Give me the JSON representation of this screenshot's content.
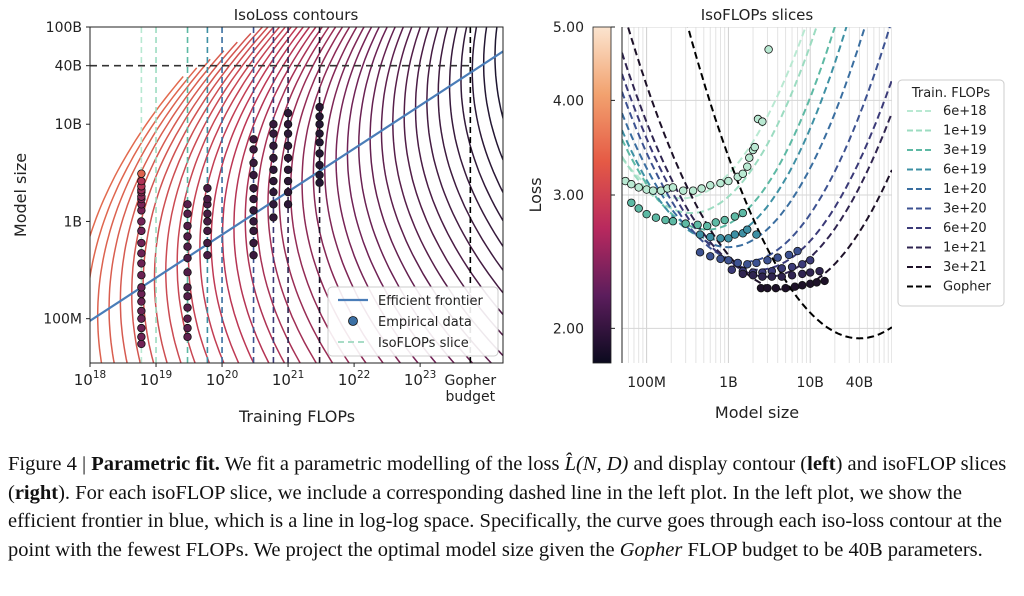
{
  "chart_data": [
    {
      "type": "contour",
      "title": "IsoLoss contours",
      "xlabel": "Training FLOPs",
      "ylabel": "Model size",
      "x_scale": "log",
      "y_scale": "log",
      "xlim": [
        1e+18,
        1.8e+24
      ],
      "ylim": [
        35000000.0,
        100000000000.0
      ],
      "x_ticks": [
        {
          "value": 1e+18,
          "base": "10",
          "exp": "18"
        },
        {
          "value": 1e+19,
          "base": "10",
          "exp": "19"
        },
        {
          "value": 1e+20,
          "base": "10",
          "exp": "20"
        },
        {
          "value": 1e+21,
          "base": "10",
          "exp": "21"
        },
        {
          "value": 1e+22,
          "base": "10",
          "exp": "22"
        },
        {
          "value": 1e+23,
          "base": "10",
          "exp": "23"
        }
      ],
      "gopher_tick": {
        "value": 5.76e+23,
        "line1": "Gopher",
        "line2": "budget"
      },
      "y_ticks": [
        {
          "value": 100000000.0,
          "label": "100M"
        },
        {
          "value": 1000000000.0,
          "label": "1B"
        },
        {
          "value": 10000000000.0,
          "label": "10B"
        },
        {
          "value": 40000000000.0,
          "label": "40B"
        },
        {
          "value": 100000000000.0,
          "label": "100B"
        }
      ],
      "efficient_frontier": {
        "points": [
          [
            1e+18,
            95000000.0
          ],
          [
            1.8e+24,
            56000000000.0
          ]
        ],
        "color": "#4a7db8"
      },
      "isoflop_slices": [
        6e+18,
        1e+19,
        3e+19,
        6e+19,
        1e+20,
        3e+20,
        6e+20,
        1e+21,
        3e+21,
        5.76e+23
      ],
      "gopher_projection": {
        "flops": 5.76e+23,
        "params": 40000000000.0
      },
      "legend": [
        {
          "label": "Efficient frontier",
          "kind": "line"
        },
        {
          "label": "Empirical data",
          "kind": "marker"
        },
        {
          "label": "IsoFLOPs slice",
          "kind": "dashed"
        }
      ],
      "legend_position": "lower-right",
      "loss_colorbar": {
        "ticks": [
          {
            "value": 5.0,
            "label": "5.00"
          },
          {
            "value": 4.0,
            "label": "4.00"
          },
          {
            "value": 3.0,
            "label": "3.00"
          },
          {
            "value": 2.0,
            "label": "2.00"
          }
        ]
      }
    },
    {
      "type": "scatter",
      "title": "IsoFLOPs slices",
      "xlabel": "Model size",
      "ylabel": "Loss",
      "x_scale": "log",
      "y_scale": "log",
      "xlim": [
        50000000.0,
        100000000000.0
      ],
      "ylim": [
        1.8,
        5.0
      ],
      "x_ticks": [
        {
          "value": 100000000.0,
          "label": "100M"
        },
        {
          "value": 1000000000.0,
          "label": "1B"
        },
        {
          "value": 10000000000.0,
          "label": "10B"
        },
        {
          "value": 40000000000.0,
          "label": "40B"
        }
      ],
      "y_ticks": [
        {
          "value": 5.0,
          "label": "5.00"
        },
        {
          "value": 4.0,
          "label": "4.00"
        },
        {
          "value": 3.0,
          "label": "3.00"
        },
        {
          "value": 2.0,
          "label": "2.00"
        }
      ],
      "legend_title": "Train. FLOPs",
      "legend_position": "right",
      "series": [
        {
          "name": "6e+18",
          "color": "#b9e9d2",
          "curve": {
            "min_n": 270000000.0,
            "min_loss": 2.97,
            "k": 0.18,
            "n_max": 35000000000.0
          },
          "points": [
            [
              55000000.0,
              3.13
            ],
            [
              65000000.0,
              3.1
            ],
            [
              80000000.0,
              3.07
            ],
            [
              100000000.0,
              3.05
            ],
            [
              120000000.0,
              3.04
            ],
            [
              150000000.0,
              3.04
            ],
            [
              180000000.0,
              3.06
            ],
            [
              210000000.0,
              3.07
            ],
            [
              280000000.0,
              3.04
            ],
            [
              370000000.0,
              3.04
            ],
            [
              470000000.0,
              3.06
            ],
            [
              600000000.0,
              3.09
            ],
            [
              800000000.0,
              3.11
            ],
            [
              1000000000.0,
              3.13
            ],
            [
              1300000000.0,
              3.17
            ],
            [
              1500000000.0,
              3.2
            ],
            [
              1700000000.0,
              3.27
            ],
            [
              1800000000.0,
              3.36
            ],
            [
              2000000000.0,
              3.44
            ],
            [
              2100000000.0,
              3.47
            ],
            [
              2300000000.0,
              3.78
            ],
            [
              2600000000.0,
              3.75
            ],
            [
              3100000000.0,
              4.67
            ]
          ]
        },
        {
          "name": "1e+19",
          "color": "#9cdcc1",
          "curve": {
            "min_n": 350000000.0,
            "min_loss": 2.84,
            "k": 0.19,
            "n_max": 50000000000.0
          },
          "points": []
        },
        {
          "name": "3e+19",
          "color": "#5db9a4",
          "curve": {
            "min_n": 550000000.0,
            "min_loss": 2.7,
            "k": 0.2,
            "n_max": 100000000000.0
          },
          "points": [
            [
              65000000.0,
              2.93
            ],
            [
              80000000.0,
              2.88
            ],
            [
              100000000.0,
              2.83
            ],
            [
              130000000.0,
              2.8
            ],
            [
              170000000.0,
              2.78
            ],
            [
              210000000.0,
              2.77
            ],
            [
              300000000.0,
              2.75
            ],
            [
              420000000.0,
              2.74
            ],
            [
              550000000.0,
              2.73
            ],
            [
              700000000.0,
              2.76
            ],
            [
              900000000.0,
              2.78
            ],
            [
              1200000000.0,
              2.81
            ],
            [
              1500000000.0,
              2.84
            ]
          ]
        },
        {
          "name": "6e+19",
          "color": "#3e90a4",
          "curve": {
            "min_n": 700000000.0,
            "min_loss": 2.62,
            "k": 0.2,
            "n_max": 100000000000.0
          },
          "points": [
            [
              450000000.0,
              2.66
            ],
            [
              600000000.0,
              2.64
            ],
            [
              800000000.0,
              2.63
            ],
            [
              1000000000.0,
              2.63
            ],
            [
              1200000000.0,
              2.66
            ],
            [
              1500000000.0,
              2.67
            ],
            [
              1700000000.0,
              2.7
            ],
            [
              2200000000.0,
              2.66
            ]
          ]
        },
        {
          "name": "1e+20",
          "color": "#3a6ea0",
          "curve": {
            "min_n": 1000000000.0,
            "min_loss": 2.56,
            "k": 0.19,
            "n_max": 100000000000.0
          },
          "points": []
        },
        {
          "name": "3e+20",
          "color": "#3d5291",
          "curve": {
            "min_n": 1600000000.0,
            "min_loss": 2.45,
            "k": 0.18,
            "n_max": 100000000000.0
          },
          "points": [
            [
              450000000.0,
              2.52
            ],
            [
              600000000.0,
              2.49
            ],
            [
              800000000.0,
              2.47
            ],
            [
              1000000000.0,
              2.46
            ],
            [
              1300000000.0,
              2.44
            ],
            [
              1700000000.0,
              2.43
            ],
            [
              2200000000.0,
              2.44
            ],
            [
              3000000000.0,
              2.46
            ],
            [
              4000000000.0,
              2.48
            ],
            [
              5500000000.0,
              2.5
            ],
            [
              7000000000.0,
              2.53
            ]
          ]
        },
        {
          "name": "6e+20",
          "color": "#3b3a78",
          "curve": {
            "min_n": 2300000000.0,
            "min_loss": 2.39,
            "k": 0.17,
            "n_max": 100000000000.0
          },
          "points": [
            [
              1100000000.0,
              2.39
            ],
            [
              1500000000.0,
              2.38
            ],
            [
              2000000000.0,
              2.37
            ],
            [
              2600000000.0,
              2.37
            ],
            [
              3400000000.0,
              2.38
            ],
            [
              4500000000.0,
              2.4
            ],
            [
              6000000000.0,
              2.41
            ],
            [
              8000000000.0,
              2.43
            ],
            [
              10000000000.0,
              2.46
            ]
          ]
        },
        {
          "name": "1e+21",
          "color": "#2f2450",
          "curve": {
            "min_n": 3000000000.0,
            "min_loss": 2.34,
            "k": 0.17,
            "n_max": 100000000000.0
          },
          "points": [
            [
              1500000000.0,
              2.36
            ],
            [
              2000000000.0,
              2.35
            ],
            [
              2600000000.0,
              2.34
            ],
            [
              3400000000.0,
              2.34
            ],
            [
              4500000000.0,
              2.34
            ],
            [
              6000000000.0,
              2.35
            ],
            [
              8000000000.0,
              2.36
            ],
            [
              10000000000.0,
              2.37
            ],
            [
              13000000000.0,
              2.38
            ]
          ]
        },
        {
          "name": "3e+21",
          "color": "#1d1128",
          "curve": {
            "min_n": 5000000000.0,
            "min_loss": 2.25,
            "k": 0.17,
            "n_max": 100000000000.0
          },
          "points": [
            [
              2500000000.0,
              2.26
            ],
            [
              3000000000.0,
              2.26
            ],
            [
              3800000000.0,
              2.26
            ],
            [
              5000000000.0,
              2.26
            ],
            [
              6500000000.0,
              2.27
            ],
            [
              8000000000.0,
              2.28
            ],
            [
              10000000000.0,
              2.29
            ],
            [
              12000000000.0,
              2.3
            ],
            [
              15000000000.0,
              2.31
            ]
          ]
        },
        {
          "name": "Gopher",
          "color": "#000000",
          "curve": {
            "min_n": 40000000000.0,
            "min_loss": 1.94,
            "k": 0.17,
            "n_max": 100000000000.0
          },
          "points": []
        }
      ]
    }
  ],
  "caption": {
    "lead": "Figure 4 | ",
    "bold_title": "Parametric fit.",
    "part1": " We fit a parametric modelling of the loss ",
    "formula": "L̂(N, D)",
    "part2": " and display contour (",
    "left_word": "left",
    "part3": ") and isoFLOP slices (",
    "right_word": "right",
    "part4": "). For each isoFLOP slice, we include a corresponding dashed line in the left plot. In the left plot, we show the efficient frontier in blue, which is a line in log-log space. Specifically, the curve goes through each iso-loss contour at the point with the fewest FLOPs. We project the optimal model size given the ",
    "gopher_word": "Gopher",
    "part5": " FLOP budget to be 40B parameters."
  }
}
